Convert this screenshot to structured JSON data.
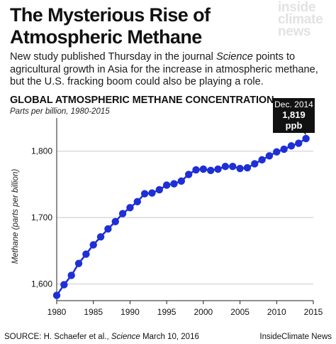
{
  "headline": [
    "The Mysterious Rise of",
    "Atmospheric Methane"
  ],
  "logo": [
    "inside",
    "climate",
    "news"
  ],
  "intro": {
    "before_journal": "New study published Thursday in the journal ",
    "journal": "Science",
    "after_journal": " points to agricultural growth in Asia for the increase in atmospheric methane, but the U.S. fracking boom could also be playing a role."
  },
  "footer": {
    "source_prefix": "SOURCE: H. Schaefer et al., ",
    "source_journal": "Science",
    "source_suffix": " March 10, 2016",
    "credit": "InsideClimate News"
  },
  "colors": {
    "dot": "#1f2fd6",
    "line": "#1f2fd6",
    "grid": "#c8c8c8",
    "axis": "#222222",
    "callout_bg": "#111111"
  },
  "chart_data": {
    "type": "line",
    "title": "GLOBAL ATMOSPHERIC METHANE CONCENTRATION",
    "subtitle": "Parts per billion, 1980-2015",
    "xlabel": "",
    "ylabel": "Methane (parts per billion)",
    "xlim": [
      1980,
      2015
    ],
    "ylim": [
      1575,
      1850
    ],
    "x_ticks": [
      1980,
      1985,
      1990,
      1995,
      2000,
      2005,
      2010,
      2015
    ],
    "y_ticks": [
      1600,
      1700,
      1800
    ],
    "y_tick_labels": [
      "1,600",
      "1,700",
      "1,800"
    ],
    "grid": "horizontal",
    "x": [
      1980,
      1981,
      1982,
      1983,
      1984,
      1985,
      1986,
      1987,
      1988,
      1989,
      1990,
      1991,
      1992,
      1993,
      1994,
      1995,
      1996,
      1997,
      1998,
      1999,
      2000,
      2001,
      2002,
      2003,
      2004,
      2005,
      2006,
      2007,
      2008,
      2009,
      2010,
      2011,
      2012,
      2013,
      2014
    ],
    "values": [
      1583,
      1599,
      1613,
      1631,
      1645,
      1659,
      1671,
      1683,
      1694,
      1706,
      1715,
      1724,
      1736,
      1737,
      1742,
      1749,
      1751,
      1755,
      1765,
      1772,
      1773,
      1771,
      1773,
      1777,
      1777,
      1774,
      1775,
      1781,
      1787,
      1793,
      1799,
      1803,
      1808,
      1812,
      1819
    ],
    "annotation": {
      "x": 2014,
      "y": 1819,
      "line1": "Dec. 2014",
      "line2": "1,819 ppb"
    }
  }
}
